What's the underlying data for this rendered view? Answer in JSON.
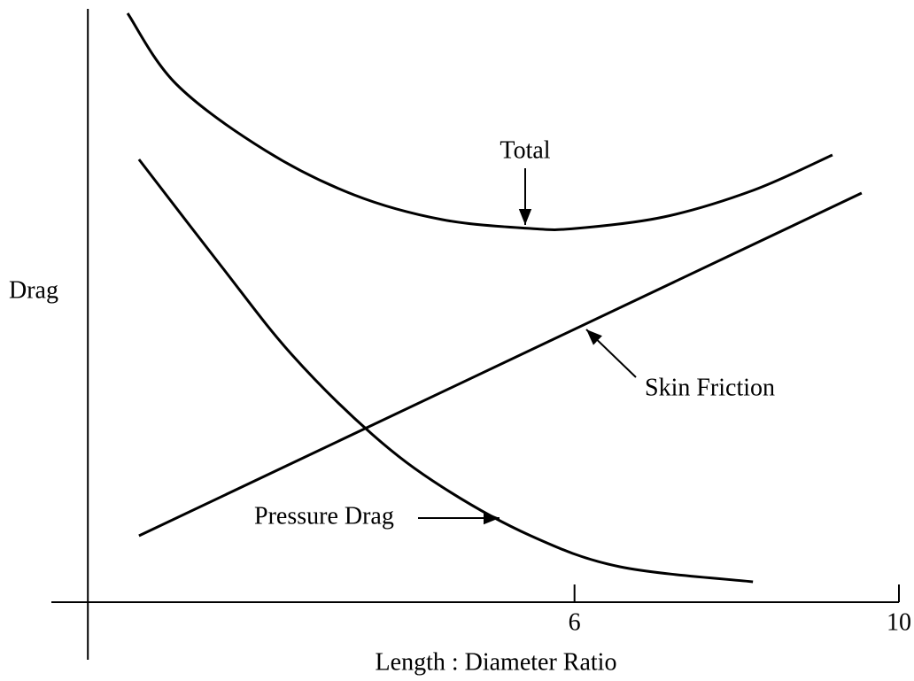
{
  "chart_data": {
    "type": "line",
    "x_label": "Length : Diameter Ratio",
    "y_label": "Drag",
    "xlim": [
      -0.45,
      10
    ],
    "xticks": [
      6,
      10
    ],
    "ylim": [
      -6.5,
      67
    ],
    "series": [
      {
        "name": "Total",
        "color": "#000000",
        "x": [
          0.49,
          1.09,
          2.19,
          3.28,
          4.37,
          5.46,
          6.01,
          7.1,
          8.2,
          9.18
        ],
        "values": [
          66.5,
          58.5,
          51,
          46,
          43.2,
          42.2,
          42.2,
          43.5,
          46.5,
          50.5
        ]
      },
      {
        "name": "Skin Friction",
        "color": "#000000",
        "x": [
          0.63,
          9.54
        ],
        "values": [
          7.5,
          46.2
        ]
      },
      {
        "name": "Pressure Drag",
        "color": "#000000",
        "x": [
          0.63,
          1.64,
          2.51,
          3.5,
          4.37,
          5.46,
          6.56,
          8.2
        ],
        "values": [
          50,
          38,
          28,
          19,
          13,
          7.5,
          4,
          2.3
        ]
      }
    ]
  }
}
